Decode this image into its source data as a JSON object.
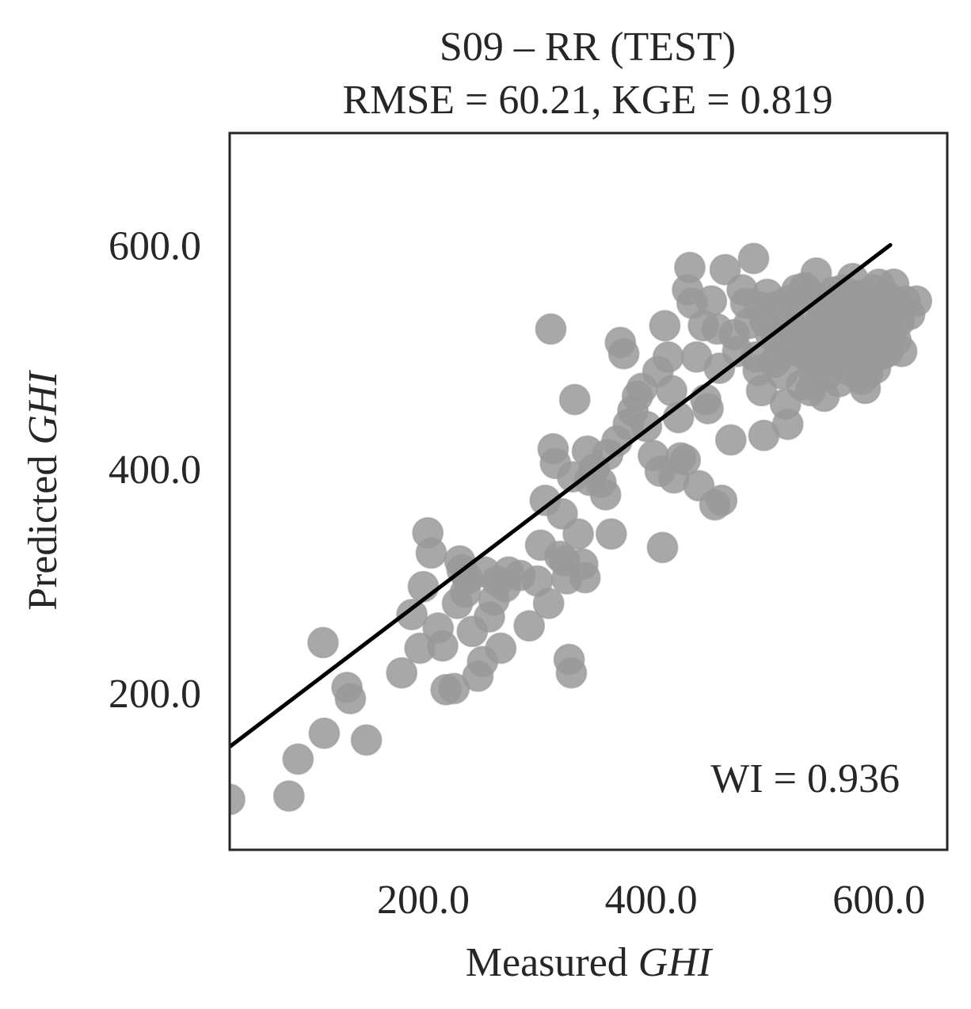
{
  "chart_data": {
    "type": "scatter",
    "title_line1": "S09 – RR (TEST)",
    "title_line2": "RMSE = 60.21, KGE = 0.819",
    "xlabel_prefix": "Measured ",
    "xlabel_var": "GHI",
    "ylabel_prefix": "Predicted ",
    "ylabel_var": "GHI",
    "annotation": "WI = 0.936",
    "xlim": [
      30,
      660
    ],
    "ylim": [
      60,
      700
    ],
    "xticks": [
      200,
      400,
      600
    ],
    "yticks": [
      200,
      400,
      600
    ],
    "xtick_labels": [
      "200.0",
      "400.0",
      "600.0"
    ],
    "ytick_labels": [
      "200.0",
      "400.0",
      "600.0"
    ],
    "grid": false,
    "point_color": "#999999",
    "line_color": "#000000",
    "fit_line": {
      "x": [
        30,
        610
      ],
      "y": [
        152,
        600
      ]
    },
    "points": [
      [
        30,
        105
      ],
      [
        82,
        108
      ],
      [
        90,
        141
      ],
      [
        112,
        245
      ],
      [
        113,
        164
      ],
      [
        133,
        205
      ],
      [
        136,
        195
      ],
      [
        150,
        158
      ],
      [
        181,
        218
      ],
      [
        190,
        270
      ],
      [
        197,
        240
      ],
      [
        200,
        295
      ],
      [
        204,
        343
      ],
      [
        207,
        325
      ],
      [
        213,
        258
      ],
      [
        217,
        242
      ],
      [
        220,
        203
      ],
      [
        227,
        204
      ],
      [
        230,
        280
      ],
      [
        232,
        318
      ],
      [
        234,
        310
      ],
      [
        237,
        290
      ],
      [
        239,
        302
      ],
      [
        243,
        255
      ],
      [
        248,
        215
      ],
      [
        252,
        228
      ],
      [
        254,
        308
      ],
      [
        258,
        268
      ],
      [
        262,
        283
      ],
      [
        265,
        300
      ],
      [
        268,
        240
      ],
      [
        272,
        295
      ],
      [
        275,
        308
      ],
      [
        285,
        305
      ],
      [
        293,
        260
      ],
      [
        300,
        300
      ],
      [
        303,
        332
      ],
      [
        307,
        372
      ],
      [
        310,
        280
      ],
      [
        312,
        525
      ],
      [
        314,
        418
      ],
      [
        316,
        405
      ],
      [
        320,
        322
      ],
      [
        322,
        360
      ],
      [
        324,
        318
      ],
      [
        326,
        302
      ],
      [
        328,
        230
      ],
      [
        330,
        218
      ],
      [
        331,
        393
      ],
      [
        333,
        462
      ],
      [
        336,
        342
      ],
      [
        340,
        315
      ],
      [
        342,
        303
      ],
      [
        344,
        416
      ],
      [
        346,
        390
      ],
      [
        350,
        400
      ],
      [
        356,
        388
      ],
      [
        360,
        377
      ],
      [
        362,
        413
      ],
      [
        365,
        342
      ],
      [
        370,
        425
      ],
      [
        373,
        513
      ],
      [
        376,
        503
      ],
      [
        380,
        440
      ],
      [
        384,
        452
      ],
      [
        388,
        465
      ],
      [
        392,
        472
      ],
      [
        396,
        438
      ],
      [
        402,
        412
      ],
      [
        406,
        487
      ],
      [
        408,
        398
      ],
      [
        410,
        330
      ],
      [
        412,
        528
      ],
      [
        415,
        500
      ],
      [
        418,
        470
      ],
      [
        420,
        392
      ],
      [
        424,
        446
      ],
      [
        426,
        410
      ],
      [
        430,
        408
      ],
      [
        432,
        560
      ],
      [
        434,
        580
      ],
      [
        436,
        548
      ],
      [
        440,
        500
      ],
      [
        442,
        385
      ],
      [
        446,
        528
      ],
      [
        448,
        462
      ],
      [
        450,
        454
      ],
      [
        453,
        550
      ],
      [
        456,
        368
      ],
      [
        458,
        525
      ],
      [
        460,
        490
      ],
      [
        462,
        372
      ],
      [
        465,
        578
      ],
      [
        470,
        426
      ],
      [
        473,
        520
      ],
      [
        476,
        505
      ],
      [
        480,
        560
      ],
      [
        483,
        548
      ],
      [
        486,
        530
      ],
      [
        490,
        588
      ],
      [
        492,
        500
      ],
      [
        494,
        488
      ],
      [
        497,
        470
      ],
      [
        499,
        430
      ],
      [
        502,
        556
      ],
      [
        505,
        520
      ],
      [
        508,
        495
      ],
      [
        510,
        545
      ],
      [
        512,
        500
      ],
      [
        515,
        485
      ],
      [
        518,
        458
      ],
      [
        520,
        440
      ],
      [
        522,
        530
      ],
      [
        525,
        508
      ],
      [
        528,
        560
      ],
      [
        530,
        540
      ],
      [
        532,
        475
      ],
      [
        535,
        518
      ],
      [
        537,
        500
      ],
      [
        540,
        555
      ],
      [
        542,
        488
      ],
      [
        545,
        575
      ],
      [
        547,
        530
      ],
      [
        550,
        512
      ],
      [
        552,
        465
      ],
      [
        555,
        540
      ],
      [
        557,
        500
      ],
      [
        560,
        558
      ],
      [
        562,
        520
      ],
      [
        565,
        478
      ],
      [
        567,
        552
      ],
      [
        570,
        505
      ],
      [
        572,
        535
      ],
      [
        575,
        488
      ],
      [
        577,
        570
      ],
      [
        580,
        515
      ],
      [
        582,
        545
      ],
      [
        585,
        500
      ],
      [
        588,
        472
      ],
      [
        590,
        535
      ],
      [
        592,
        510
      ],
      [
        595,
        560
      ],
      [
        597,
        490
      ],
      [
        600,
        545
      ],
      [
        602,
        520
      ],
      [
        604,
        503
      ],
      [
        606,
        555
      ],
      [
        608,
        530
      ],
      [
        610,
        540
      ],
      [
        613,
        565
      ],
      [
        615,
        515
      ],
      [
        618,
        532
      ],
      [
        620,
        505
      ],
      [
        623,
        550
      ],
      [
        627,
        538
      ],
      [
        633,
        550
      ],
      [
        545,
        498
      ],
      [
        555,
        485
      ],
      [
        565,
        523
      ],
      [
        575,
        545
      ],
      [
        585,
        528
      ],
      [
        595,
        518
      ],
      [
        605,
        512
      ],
      [
        525,
        525
      ],
      [
        535,
        562
      ],
      [
        548,
        500
      ],
      [
        558,
        532
      ],
      [
        568,
        560
      ],
      [
        578,
        500
      ],
      [
        588,
        540
      ],
      [
        598,
        530
      ],
      [
        608,
        505
      ],
      [
        540,
        470
      ],
      [
        550,
        545
      ],
      [
        560,
        495
      ],
      [
        570,
        525
      ],
      [
        580,
        555
      ],
      [
        590,
        485
      ],
      [
        600,
        565
      ],
      [
        530,
        505
      ],
      [
        520,
        550
      ],
      [
        510,
        520
      ],
      [
        500,
        532
      ],
      [
        495,
        545
      ],
      [
        560,
        505
      ],
      [
        575,
        515
      ],
      [
        585,
        480
      ],
      [
        595,
        498
      ],
      [
        605,
        540
      ],
      [
        615,
        548
      ],
      [
        545,
        520
      ],
      [
        555,
        550
      ]
    ]
  }
}
